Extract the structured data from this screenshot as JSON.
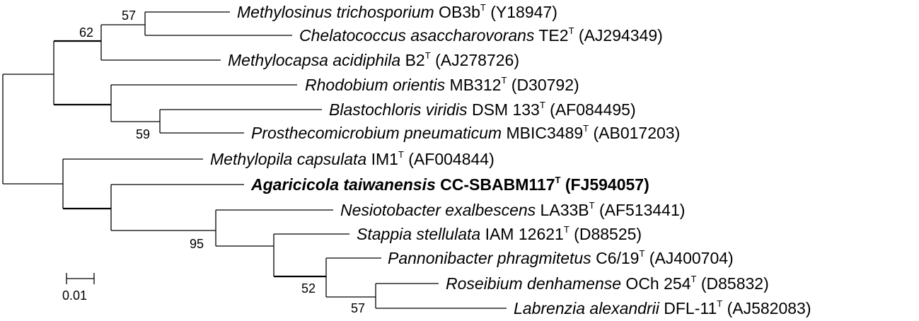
{
  "taxa": [
    {
      "species": "Methylosinus trichosporium",
      "strain": "OB3b",
      "sup": "T",
      "accession": "(Y18947)",
      "bold": false
    },
    {
      "species": "Chelatococcus asaccharovorans",
      "strain": "TE2",
      "sup": "T",
      "accession": "(AJ294349)",
      "bold": false
    },
    {
      "species": "Methylocapsa acidiphila",
      "strain": "B2",
      "sup": "T",
      "accession": "(AJ278726)",
      "bold": false
    },
    {
      "species": "Rhodobium orientis",
      "strain": "MB312",
      "sup": "T",
      "accession": "(D30792)",
      "bold": false
    },
    {
      "species": "Blastochloris viridis",
      "strain": "DSM 133",
      "sup": "T",
      "accession": "(AF084495)",
      "bold": false
    },
    {
      "species": "Prosthecomicrobium pneumaticum",
      "strain": "MBIC3489",
      "sup": "T",
      "accession": "(AB017203)",
      "bold": false
    },
    {
      "species": "Methylopila capsulata",
      "strain": "IM1",
      "sup": "T",
      "accession": "(AF004844)",
      "bold": false
    },
    {
      "species": "Agaricicola taiwanensis",
      "strain": "CC-SBABM117",
      "sup": "T",
      "accession": "(FJ594057)",
      "bold": true
    },
    {
      "species": "Nesiotobacter exalbescens",
      "strain": "LA33B",
      "sup": "T",
      "accession": "(AF513441)",
      "bold": false
    },
    {
      "species": "Stappia stellulata",
      "strain": "IAM 12621",
      "sup": "T",
      "accession": "(D88525)",
      "bold": false
    },
    {
      "species": "Pannonibacter phragmitetus",
      "strain": "C6/19",
      "sup": "T",
      "accession": "(AJ400704)",
      "bold": false
    },
    {
      "species": "Roseibium denhamense",
      "strain": "OCh 254",
      "sup": "T",
      "accession": "(D85832)",
      "bold": false
    },
    {
      "species": "Labrenzia alexandrii",
      "strain": "DFL-11",
      "sup": "T",
      "accession": "(AJ582083)",
      "bold": false
    }
  ],
  "bootstrap": [
    "57",
    "62",
    "59",
    "95",
    "52",
    "57"
  ],
  "scale_bar": {
    "label": "0.01"
  }
}
